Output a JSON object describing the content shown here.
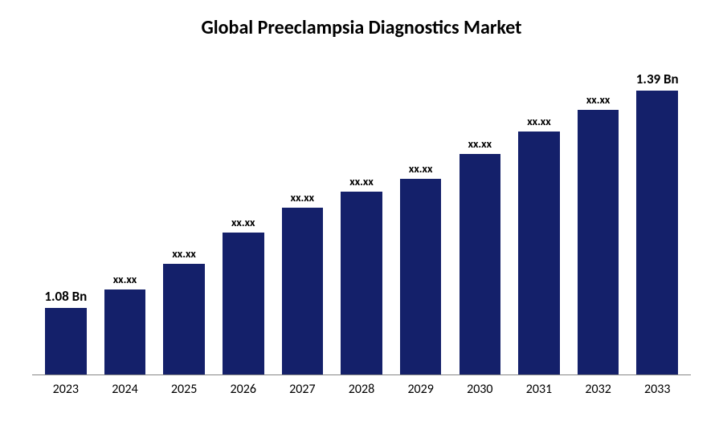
{
  "chart": {
    "type": "bar",
    "title": "Global Preeclampsia Diagnostics Market",
    "title_fontsize": 24,
    "title_color": "#000000",
    "background_color": "#ffffff",
    "bar_color": "#14206a",
    "axis_color": "#888888",
    "label_color": "#000000",
    "xlabel_fontsize": 16,
    "barlabel_fontsize": 14,
    "barlabel_fontsize_large": 17,
    "bar_width": 0.7,
    "ylim": [
      0,
      100
    ],
    "categories": [
      "2023",
      "2024",
      "2025",
      "2026",
      "2027",
      "2028",
      "2029",
      "2030",
      "2031",
      "2032",
      "2033"
    ],
    "values": [
      21,
      27,
      35,
      45,
      53,
      58,
      62,
      70,
      77,
      84,
      90
    ],
    "value_labels": [
      "1.08 Bn",
      "xx.xx",
      "xx.xx",
      "xx.xx",
      "xx.xx",
      "xx.xx",
      "xx.xx",
      "xx.xx",
      "xx.xx",
      "xx.xx",
      "1.39 Bn"
    ],
    "value_label_emphasis": [
      true,
      false,
      false,
      false,
      false,
      false,
      false,
      false,
      false,
      false,
      true
    ]
  }
}
